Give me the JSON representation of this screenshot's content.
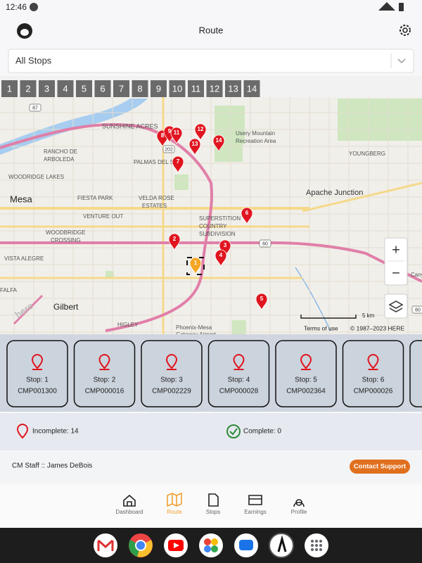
{
  "status_bar": {
    "time": "12:46"
  },
  "header": {
    "title": "Route"
  },
  "filter": {
    "selected": "All Stops"
  },
  "stop_tabs": [
    1,
    2,
    3,
    4,
    5,
    6,
    7,
    8,
    9,
    10,
    11,
    12,
    13,
    14
  ],
  "map": {
    "labels": [
      "SUNSHINE ACRES",
      "RANCHO DE",
      "ARBOLEDA",
      "PALMAS DEL SOL",
      "Usery Mountain",
      "Recreation Area",
      "YOUNGBERG",
      "WOODRIDGE LAKES",
      "FIESTA PARK",
      "VELDA ROSE",
      "ESTATES",
      "Apache Junction",
      "Mesa",
      "VENTURE OUT",
      "SUPERSTITION",
      "COUNTRY",
      "SUBDIVISION",
      "WOODBRIDGE",
      "CROSSING",
      "VISTA ALEGRE",
      "Gilbert",
      "HIGLEY",
      "Phoenix-Mesa",
      "Gateway Airport",
      "FALFA",
      "Canyo"
    ],
    "shields": [
      "87",
      "202",
      "60",
      "60"
    ],
    "pins": [
      "8",
      "9",
      "11",
      "12",
      "13",
      "14",
      "7",
      "6",
      "2",
      "3",
      "4",
      "1",
      "5"
    ],
    "logo": "here",
    "scale": "5 km",
    "terms": "Terms of use",
    "copyright": "© 1987–2023 HERE",
    "zoom_in": "+",
    "zoom_out": "−"
  },
  "stops": [
    {
      "label": "Stop: 1",
      "code": "CMP001300"
    },
    {
      "label": "Stop: 2",
      "code": "CMP000016"
    },
    {
      "label": "Stop: 3",
      "code": "CMP002229"
    },
    {
      "label": "Stop: 4",
      "code": "CMP000028"
    },
    {
      "label": "Stop: 5",
      "code": "CMP002364"
    },
    {
      "label": "Stop: 6",
      "code": "CMP000026"
    }
  ],
  "summary": {
    "incomplete": "Incomplete: 14",
    "complete": "Complete: 0"
  },
  "staff": {
    "name": "CM Staff :: James DeBois",
    "support": "Contact Support"
  },
  "nav": [
    "Dashboard",
    "Route",
    "Stops",
    "Earnings",
    "Profile"
  ]
}
